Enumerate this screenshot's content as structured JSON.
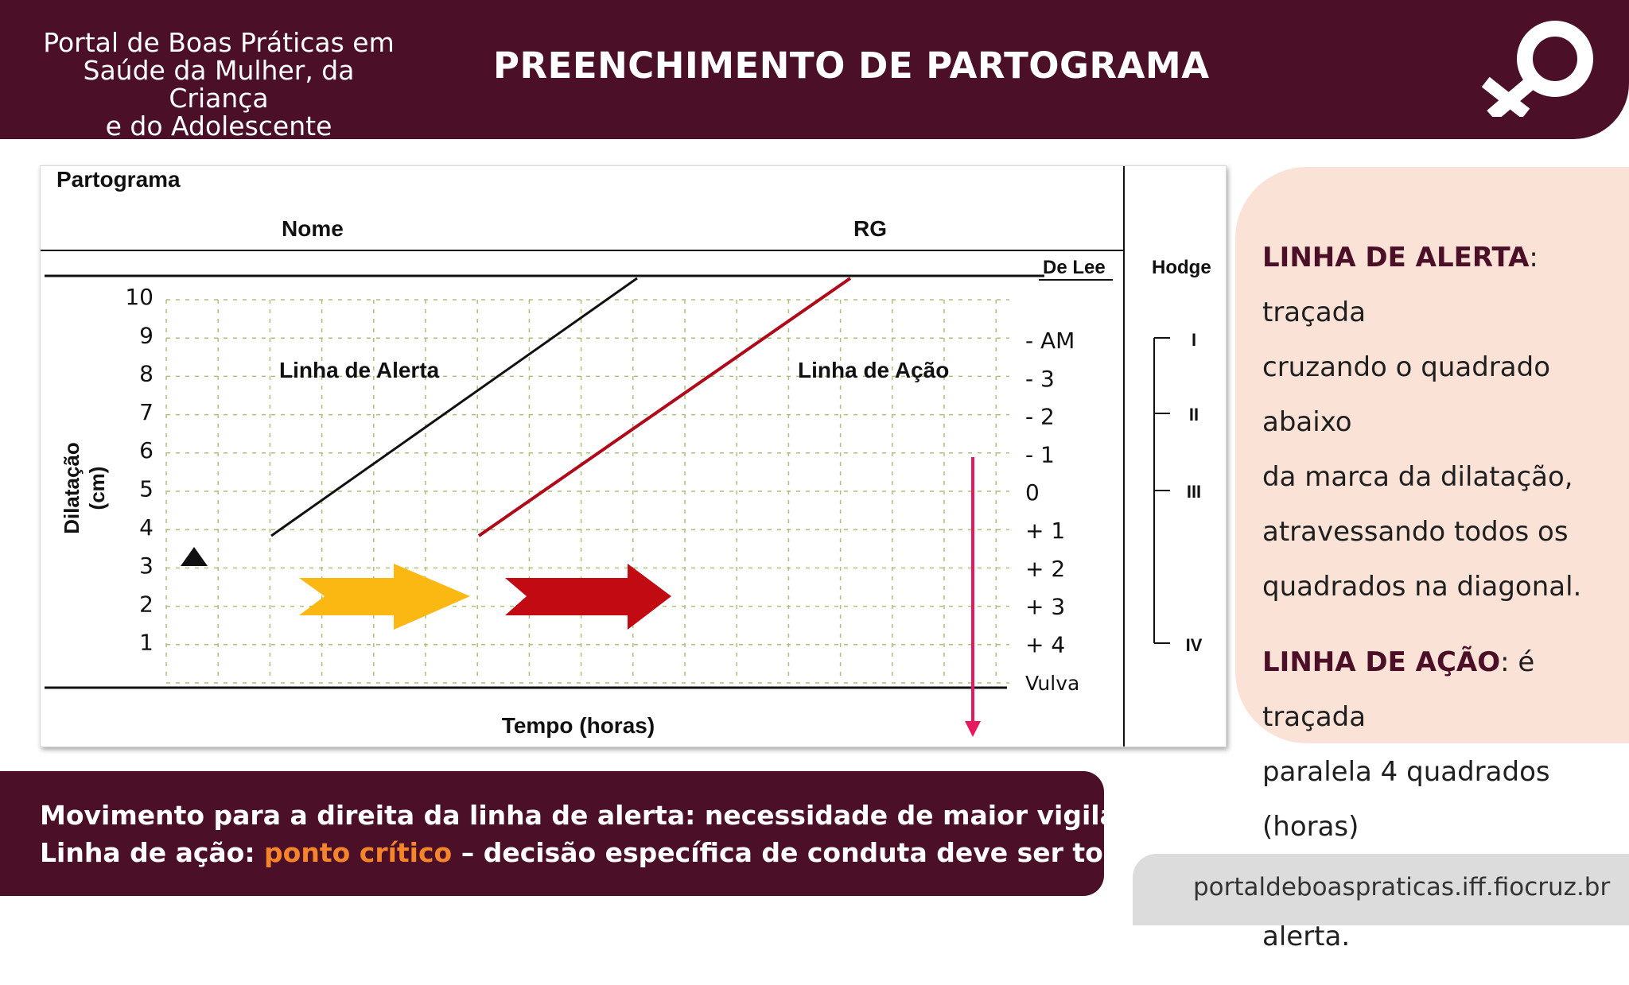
{
  "header": {
    "portal_line1": "Portal de Boas Práticas em",
    "portal_line2": "Saúde da Mulher, da Criança",
    "portal_line3": "e do Adolescente",
    "title": "PREENCHIMENTO DE PARTOGRAMA"
  },
  "logo": {
    "icon": "female-symbol-magnifier-icon"
  },
  "partograma": {
    "heading": "Partograma",
    "nome_label": "Nome",
    "rg_label": "RG",
    "delee_label": "De Lee",
    "hodge_label": "Hodge",
    "y_axis_label_1": "Dilatação",
    "y_axis_label_2": "(cm)",
    "y_ticks": [
      "10",
      "9",
      "8",
      "7",
      "6",
      "5",
      "4",
      "3",
      "2",
      "1"
    ],
    "delee_ticks": [
      "- AM",
      "- 3",
      "- 2",
      "- 1",
      "0",
      "+ 1",
      "+ 2",
      "+ 3",
      "+ 4",
      "Vulva"
    ],
    "hodge_levels": [
      "I",
      "II",
      "III",
      "IV"
    ],
    "alert_line_label": "Linha de Alerta",
    "action_line_label": "Linha de Ação",
    "x_axis_label": "Tempo (horas)",
    "colors": {
      "alert_line": "#111111",
      "action_line": "#b00a1a",
      "yellow_arrow": "#fbb712",
      "red_arrow": "#c10a11",
      "pink_arrow": "#e8185f"
    }
  },
  "info": {
    "alerta_title": "LINHA DE ALERTA",
    "alerta_text_1": ": traçada",
    "alerta_text_2": "cruzando o quadrado abaixo",
    "alerta_text_3": "da marca da dilatação,",
    "alerta_text_4": "atravessando todos os",
    "alerta_text_5": "quadrados na diagonal.",
    "acao_title": "LINHA DE AÇÃO",
    "acao_text_1": ": é traçada",
    "acao_text_2": "paralela 4 quadrados (horas)",
    "acao_text_3": "à direita da linha de alerta."
  },
  "bottom": {
    "line1": "Movimento para a direita da linha de alerta: necessidade de maior vigilância",
    "line2_a": "Linha de ação: ",
    "line2_highlight": "ponto crítico",
    "line2_b": " – decisão específica de conduta deve ser tomada."
  },
  "footer": {
    "url": "portaldeboaspraticas.iff.fiocruz.br"
  }
}
